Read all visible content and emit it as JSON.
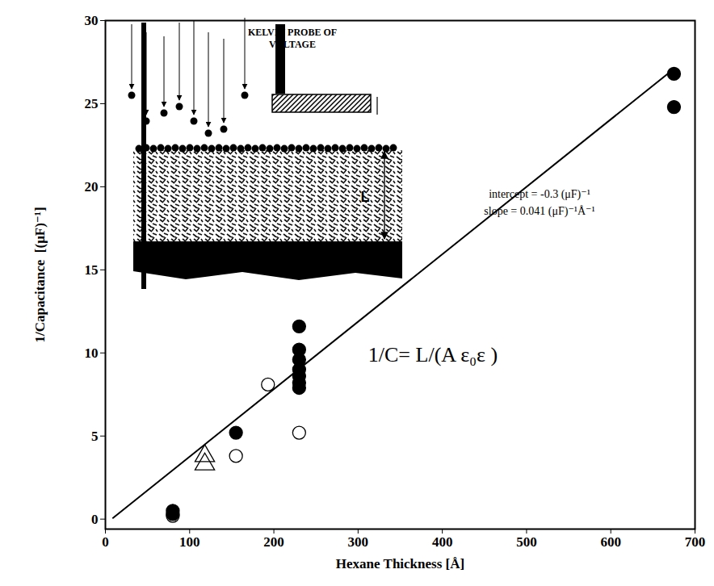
{
  "chart_data": {
    "type": "scatter",
    "x_label": "Hexane Thickness [Å]",
    "y_label": "1/Capacitance  [(μF)⁻¹]",
    "xlim": [
      0,
      700
    ],
    "xticks": [
      0,
      100,
      200,
      300,
      400,
      500,
      600,
      700
    ],
    "ylim": [
      -0.6,
      30
    ],
    "yticks": [
      0,
      5,
      10,
      15,
      20,
      25,
      30
    ],
    "grid": false,
    "series": [
      {
        "type": "scatter",
        "marker": "circle",
        "color": "#000000",
        "x": [
          80,
          80,
          155,
          230,
          230,
          230,
          230,
          230,
          230,
          230,
          675,
          675
        ],
        "values": [
          0.5,
          0.3,
          5.2,
          11.6,
          10.2,
          9.6,
          9.0,
          8.6,
          8.2,
          7.9,
          26.8,
          24.8
        ]
      },
      {
        "type": "scatter",
        "marker": "open circle",
        "color": "#000000",
        "x": [
          80,
          155,
          193,
          230
        ],
        "values": [
          0.2,
          3.8,
          8.1,
          5.2
        ]
      },
      {
        "type": "scatter",
        "marker": "open triangle",
        "color": "#000000",
        "x": [
          118,
          118
        ],
        "values": [
          3.8,
          3.3
        ]
      },
      {
        "type": "line",
        "line_style": "solid",
        "color": "#000000",
        "x": [
          9,
          675
        ],
        "values": [
          0.07,
          27.1
        ]
      }
    ],
    "annotations": [
      "intercept = -0.3 (μF)⁻¹",
      "slope = 0.041 (μF)⁻¹Å⁻¹",
      "1/C= L/(A ε₀ε )"
    ],
    "inset": {
      "probe_label": [
        "KELVIN PROBE OF",
        "VOLTAGE"
      ],
      "thickness_label": "L"
    }
  }
}
